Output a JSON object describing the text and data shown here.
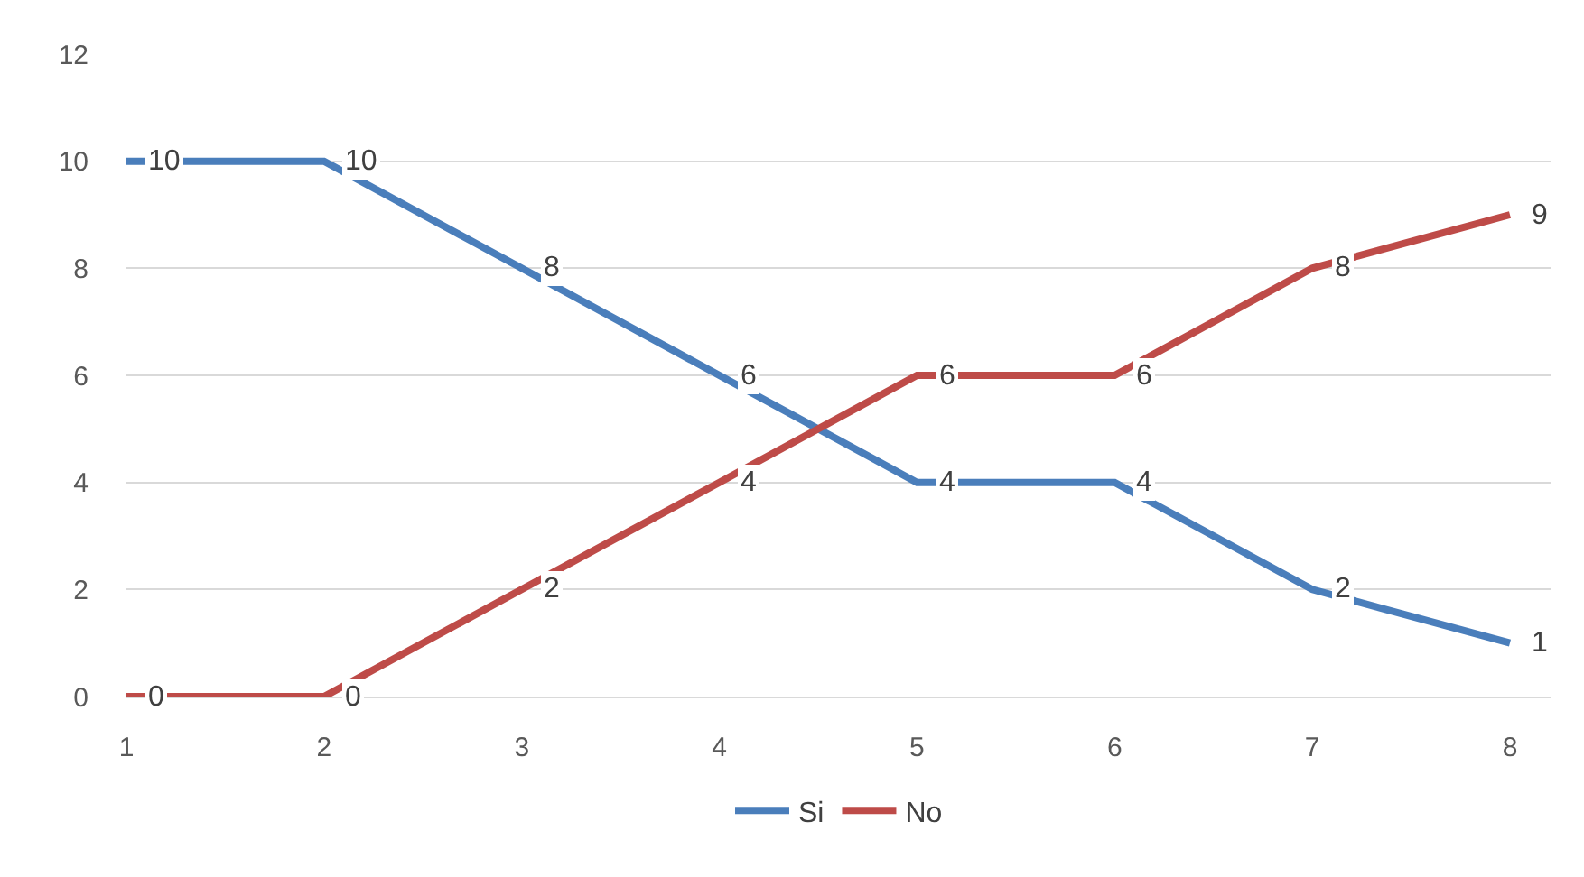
{
  "chart_data": {
    "type": "line",
    "categories": [
      "1",
      "2",
      "3",
      "4",
      "5",
      "6",
      "7",
      "8"
    ],
    "series": [
      {
        "name": "Si",
        "color": "#4a7ebb",
        "values": [
          10,
          10,
          8,
          6,
          4,
          4,
          2,
          1
        ]
      },
      {
        "name": "No",
        "color": "#be4b48",
        "values": [
          0,
          0,
          2,
          4,
          6,
          6,
          8,
          9
        ]
      }
    ],
    "ylim": [
      0,
      12
    ],
    "yticks": [
      0,
      2,
      4,
      6,
      8,
      10,
      12
    ],
    "grid": "y",
    "legend": "bottom",
    "data_labels": true,
    "line_style": "solid"
  }
}
